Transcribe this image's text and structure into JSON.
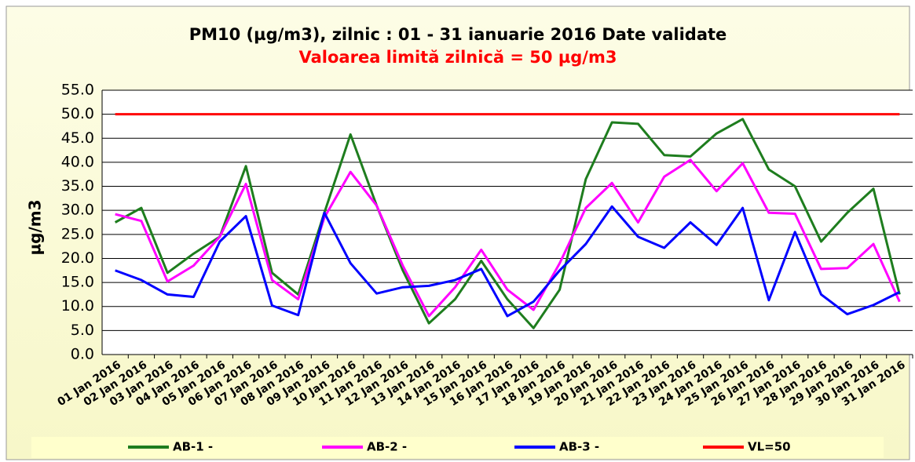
{
  "chart_data": {
    "type": "line",
    "title": "PM10 (µg/m3), zilnic : 01 - 31 ianuarie 2016  Date validate",
    "subtitle": "Valoarea limită zilnică = 50 µg/m3",
    "y_label": "µg/m3",
    "categories": [
      "01 Jan 2016",
      "02 Jan 2016",
      "03 Jan 2016",
      "04 Jan 2016",
      "05 Jan 2016",
      "06 Jan 2016",
      "07 Jan 2016",
      "08 Jan 2016",
      "09 Jan 2016",
      "10 Jan 2016",
      "11 Jan 2016",
      "12 Jan 2016",
      "13 Jan 2016",
      "14 Jan 2016",
      "15 Jan 2016",
      "16 Jan 2016",
      "17 Jan 2016",
      "18 Jan 2016",
      "19 Jan 2016",
      "20 Jan 2016",
      "21 Jan 2016",
      "22 Jan 2016",
      "23 Jan 2016",
      "24 Jan 2016",
      "25 Jan 2016",
      "26 Jan 2016",
      "27 Jan 2016",
      "28 Jan 2016",
      "29 Jan 2016",
      "30 Jan 2016",
      "31 Jan 2016"
    ],
    "series": [
      {
        "name": "AB-1 -",
        "color": "#1e7d1e",
        "values": [
          27.5,
          30.5,
          17,
          21,
          24.5,
          39.2,
          17,
          12.5,
          29.5,
          45.8,
          31,
          17.5,
          6.5,
          11.5,
          19.5,
          11.5,
          5.5,
          13.5,
          36.5,
          48.3,
          48,
          41.5,
          41.2,
          46,
          49,
          38.5,
          35,
          23.5,
          29.5,
          34.5,
          12.5
        ]
      },
      {
        "name": "AB-2 -",
        "color": "#ff00ff",
        "values": [
          29.2,
          27.8,
          15.2,
          18.5,
          24.5,
          35.5,
          15.5,
          11.5,
          28.5,
          38,
          31,
          18.5,
          8,
          14,
          21.8,
          13.5,
          9.3,
          19,
          30.5,
          35.7,
          27.5,
          37,
          40.5,
          34,
          39.8,
          29.5,
          29.3,
          17.8,
          18,
          23,
          11
        ]
      },
      {
        "name": "AB-3 -",
        "color": "#0000ff",
        "values": [
          17.5,
          15.5,
          12.5,
          12,
          23.5,
          28.8,
          10.2,
          8.2,
          29.5,
          19,
          12.7,
          14,
          14.3,
          15.5,
          17.8,
          8,
          11,
          17.5,
          23,
          30.8,
          24.5,
          22.2,
          27.5,
          22.8,
          30.5,
          11.3,
          25.5,
          12.5,
          8.4,
          10.3,
          13
        ]
      },
      {
        "name": "VL=50",
        "color": "#ff0000",
        "values": [
          50,
          50,
          50,
          50,
          50,
          50,
          50,
          50,
          50,
          50,
          50,
          50,
          50,
          50,
          50,
          50,
          50,
          50,
          50,
          50,
          50,
          50,
          50,
          50,
          50,
          50,
          50,
          50,
          50,
          50,
          50
        ]
      }
    ],
    "ylim": [
      0,
      55
    ],
    "yticks": [
      {
        "value": 0,
        "label": "0.0"
      },
      {
        "value": 5,
        "label": "5.0"
      },
      {
        "value": 10,
        "label": "10.0"
      },
      {
        "value": 15,
        "label": "15.0"
      },
      {
        "value": 20,
        "label": "20.0"
      },
      {
        "value": 25,
        "label": "25.0"
      },
      {
        "value": 30,
        "label": "30.0"
      },
      {
        "value": 35,
        "label": "35.0"
      },
      {
        "value": 40,
        "label": "40.0"
      },
      {
        "value": 45,
        "label": "45.0"
      },
      {
        "value": 50,
        "label": "50.0"
      },
      {
        "value": 55,
        "label": "55.0"
      }
    ],
    "grid": true
  }
}
